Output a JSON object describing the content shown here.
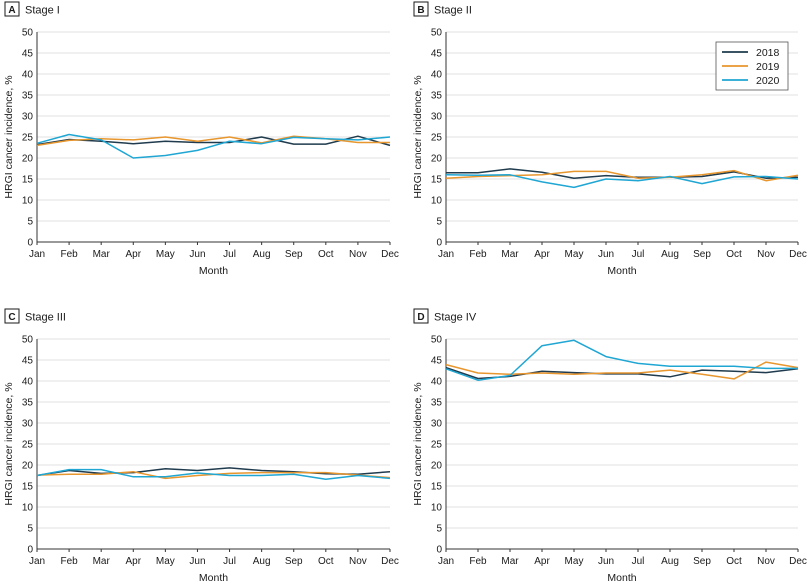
{
  "colors": {
    "2018": "#1f3b4d",
    "2019": "#e8962e",
    "2020": "#1fa6d3",
    "grid": "#d9d9d9",
    "axis": "#333333"
  },
  "legend": {
    "placement": "top-right of panel B",
    "entries": [
      "2018",
      "2019",
      "2020"
    ]
  },
  "chart_data": [
    {
      "type": "line",
      "panel_letter": "A",
      "title": "Stage I",
      "xlabel": "Month",
      "ylabel": "HRGI cancer incidence, %",
      "categories": [
        "Jan",
        "Feb",
        "Mar",
        "Apr",
        "May",
        "Jun",
        "Jul",
        "Aug",
        "Sep",
        "Oct",
        "Nov",
        "Dec"
      ],
      "ylim": [
        0,
        50
      ],
      "yticks": [
        "0",
        "5",
        "10",
        "15",
        "20",
        "25",
        "30",
        "35",
        "40",
        "45",
        "50"
      ],
      "grid": true,
      "series": [
        {
          "name": "2018",
          "values": [
            23.2,
            24.4,
            24.0,
            23.4,
            24.0,
            23.7,
            23.7,
            25.0,
            23.3,
            23.3,
            25.2,
            23.0
          ]
        },
        {
          "name": "2019",
          "values": [
            23.0,
            24.2,
            24.6,
            24.3,
            25.0,
            24.0,
            25.0,
            23.6,
            25.2,
            24.6,
            23.7,
            23.7
          ]
        },
        {
          "name": "2020",
          "values": [
            23.5,
            25.6,
            24.3,
            20.0,
            20.6,
            21.8,
            24.0,
            23.4,
            24.9,
            24.6,
            24.3,
            25.0
          ]
        }
      ]
    },
    {
      "type": "line",
      "panel_letter": "B",
      "title": "Stage II",
      "xlabel": "Month",
      "ylabel": "HRGI cancer incidence, %",
      "categories": [
        "Jan",
        "Feb",
        "Mar",
        "Apr",
        "May",
        "Jun",
        "Jul",
        "Aug",
        "Sep",
        "Oct",
        "Nov",
        "Dec"
      ],
      "ylim": [
        0,
        50
      ],
      "yticks": [
        "0",
        "5",
        "10",
        "15",
        "20",
        "25",
        "30",
        "35",
        "40",
        "45",
        "50"
      ],
      "grid": true,
      "legend": true,
      "series": [
        {
          "name": "2018",
          "values": [
            16.5,
            16.5,
            17.4,
            16.6,
            15.2,
            15.8,
            15.4,
            15.4,
            15.6,
            16.7,
            15.2,
            15.4
          ]
        },
        {
          "name": "2019",
          "values": [
            15.2,
            15.6,
            15.8,
            16.0,
            16.8,
            16.8,
            15.2,
            15.4,
            16.0,
            17.0,
            14.6,
            15.9
          ]
        },
        {
          "name": "2020",
          "values": [
            16.0,
            15.9,
            16.0,
            14.3,
            13.0,
            15.0,
            14.6,
            15.6,
            13.9,
            15.5,
            15.6,
            15.0
          ]
        }
      ]
    },
    {
      "type": "line",
      "panel_letter": "C",
      "title": "Stage III",
      "xlabel": "Month",
      "ylabel": "HRGI cancer incidence, %",
      "categories": [
        "Jan",
        "Feb",
        "Mar",
        "Apr",
        "May",
        "Jun",
        "Jul",
        "Aug",
        "Sep",
        "Oct",
        "Nov",
        "Dec"
      ],
      "ylim": [
        0,
        50
      ],
      "yticks": [
        "0",
        "5",
        "10",
        "15",
        "20",
        "25",
        "30",
        "35",
        "40",
        "45",
        "50"
      ],
      "grid": true,
      "series": [
        {
          "name": "2018",
          "values": [
            17.5,
            18.7,
            18.0,
            18.2,
            19.1,
            18.7,
            19.3,
            18.7,
            18.4,
            17.9,
            17.8,
            18.4
          ]
        },
        {
          "name": "2019",
          "values": [
            17.6,
            17.8,
            17.8,
            18.4,
            16.8,
            17.5,
            18.0,
            18.2,
            18.2,
            18.2,
            17.6,
            17.0
          ]
        },
        {
          "name": "2020",
          "values": [
            17.5,
            18.9,
            18.9,
            17.2,
            17.2,
            18.1,
            17.5,
            17.5,
            17.8,
            16.6,
            17.5,
            16.8
          ]
        }
      ]
    },
    {
      "type": "line",
      "panel_letter": "D",
      "title": "Stage IV",
      "xlabel": "Month",
      "ylabel": "HRGI cancer incidence, %",
      "categories": [
        "Jan",
        "Feb",
        "Mar",
        "Apr",
        "May",
        "Jun",
        "Jul",
        "Aug",
        "Sep",
        "Oct",
        "Nov",
        "Dec"
      ],
      "ylim": [
        0,
        50
      ],
      "yticks": [
        "0",
        "5",
        "10",
        "15",
        "20",
        "25",
        "30",
        "35",
        "40",
        "45",
        "50"
      ],
      "grid": true,
      "series": [
        {
          "name": "2018",
          "values": [
            43.2,
            40.6,
            41.1,
            42.3,
            42.0,
            41.7,
            41.7,
            41.0,
            42.6,
            42.3,
            42.0,
            42.9
          ]
        },
        {
          "name": "2019",
          "values": [
            43.9,
            41.9,
            41.6,
            41.9,
            41.6,
            41.9,
            41.9,
            42.6,
            41.6,
            40.5,
            44.5,
            43.2
          ]
        },
        {
          "name": "2020",
          "values": [
            42.9,
            40.2,
            41.3,
            48.4,
            49.7,
            45.8,
            44.2,
            43.5,
            43.5,
            43.5,
            43.0,
            43.0
          ]
        }
      ]
    }
  ]
}
